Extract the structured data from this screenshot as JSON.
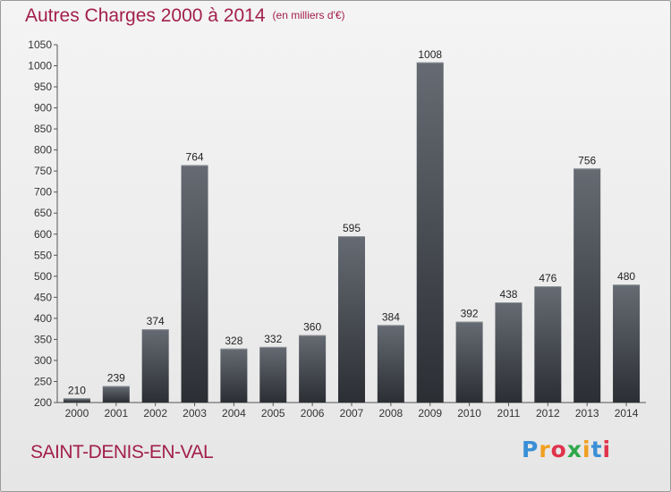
{
  "title": "Autres Charges 2000 à 2014",
  "unit": "(en milliers d'€)",
  "commune": "SAINT-DENIS-EN-VAL",
  "logo": {
    "letters": [
      "P",
      "r",
      "o",
      "x",
      "i",
      "t",
      "i"
    ],
    "colors": [
      "#3a8fd6",
      "#f0a020",
      "#e0334c",
      "#2ea84a",
      "#f0a020",
      "#3a8fd6",
      "#e0334c"
    ]
  },
  "colors": {
    "accent": "#a21f4b",
    "bar_top": "#666b73",
    "bar_bottom": "#2b2e33"
  },
  "chart_data": {
    "type": "bar",
    "title": "Autres Charges 2000 à 2014",
    "xlabel": "",
    "ylabel": "",
    "categories": [
      "2000",
      "2001",
      "2002",
      "2003",
      "2004",
      "2005",
      "2006",
      "2007",
      "2008",
      "2009",
      "2010",
      "2011",
      "2012",
      "2013",
      "2014"
    ],
    "values": [
      210,
      239,
      374,
      764,
      328,
      332,
      360,
      595,
      384,
      1008,
      392,
      438,
      476,
      756,
      480
    ],
    "ylim": [
      200,
      1050
    ],
    "yticks": [
      200,
      250,
      300,
      350,
      400,
      450,
      500,
      550,
      600,
      650,
      700,
      750,
      800,
      850,
      900,
      950,
      1000,
      1050
    ],
    "grid": false,
    "legend": "none"
  }
}
